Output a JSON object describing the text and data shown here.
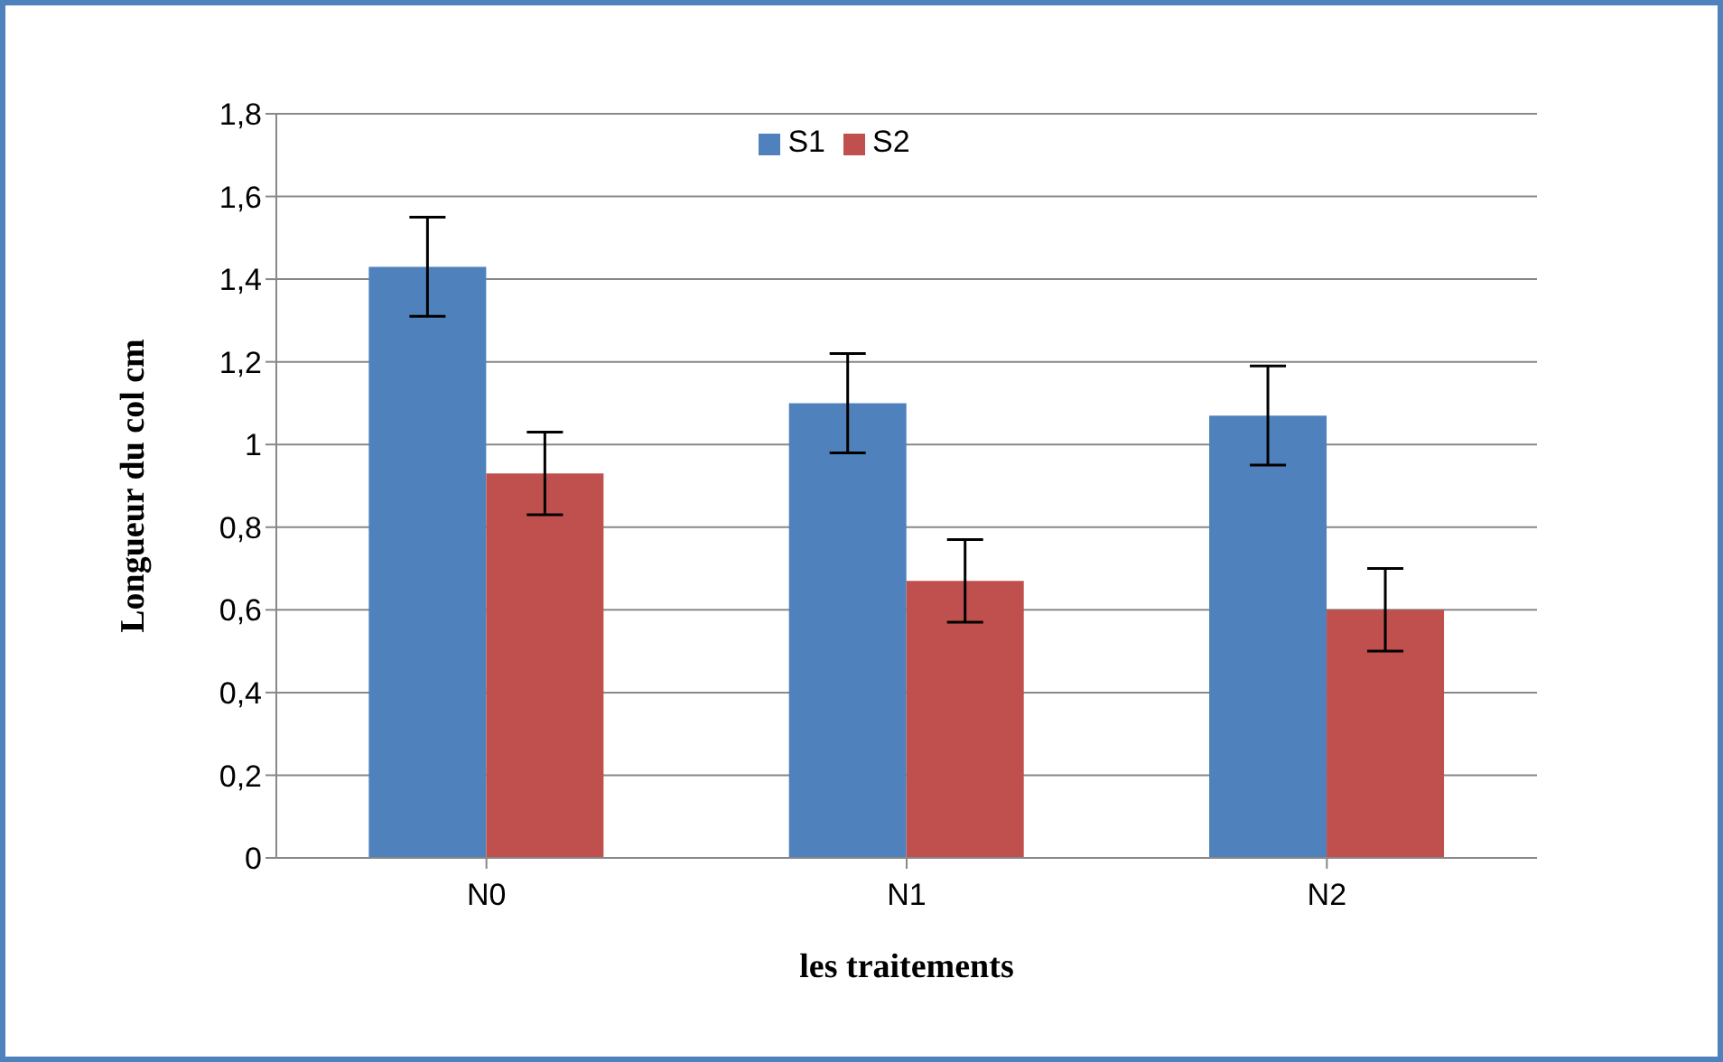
{
  "chart_data": {
    "type": "bar",
    "xlabel": "les traitements",
    "ylabel": "Longueur du col cm",
    "categories": [
      "N0",
      "N1",
      "N2"
    ],
    "series": [
      {
        "name": "S1",
        "color": "#4f81bd",
        "values": [
          1.43,
          1.1,
          1.07
        ],
        "errors": [
          0.12,
          0.12,
          0.12
        ]
      },
      {
        "name": "S2",
        "color": "#c0504d",
        "values": [
          0.93,
          0.67,
          0.6
        ],
        "errors": [
          0.1,
          0.1,
          0.1
        ]
      }
    ],
    "ylim": [
      0,
      1.8
    ],
    "yticks": [
      0,
      {
        "value": 0.2,
        "label": "0,2"
      },
      {
        "value": 0.4,
        "label": "0,4"
      },
      {
        "value": 0.6,
        "label": "0,6"
      },
      {
        "value": 0.8,
        "label": "0,8"
      },
      1,
      {
        "value": 1.2,
        "label": "1,2"
      },
      {
        "value": 1.4,
        "label": "1,4"
      },
      {
        "value": 1.6,
        "label": "1,6"
      },
      {
        "value": 1.8,
        "label": "1,8"
      }
    ],
    "grid": "y",
    "legend": "top"
  }
}
